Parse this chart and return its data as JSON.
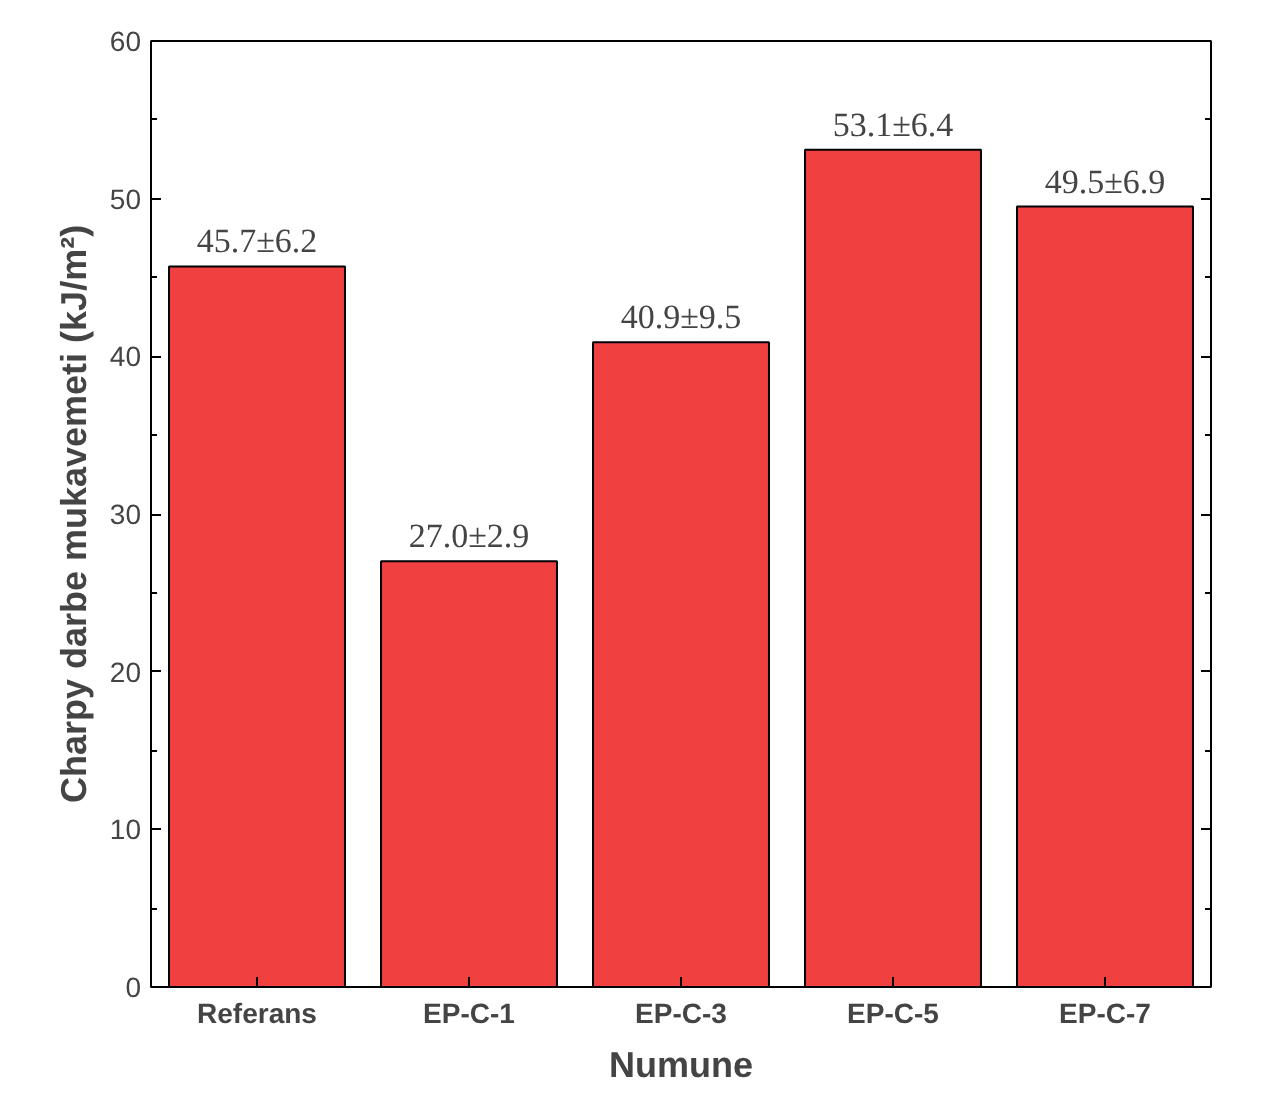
{
  "chart_data": {
    "type": "bar",
    "xlabel": "Numune",
    "ylabel": "Charpy darbe mukavemeti (kJ/m²)",
    "categories": [
      "Referans",
      "EP-C-1",
      "EP-C-3",
      "EP-C-5",
      "EP-C-7"
    ],
    "values": [
      45.7,
      27.0,
      40.9,
      53.1,
      49.5
    ],
    "value_labels": [
      "45.7±6.2",
      "27.0±2.9",
      "40.9±9.5",
      "53.1±6.4",
      "49.5±6.9"
    ],
    "color": "#f04040",
    "ylim": [
      0,
      60
    ],
    "yticks": [
      0,
      10,
      20,
      30,
      40,
      50,
      60
    ],
    "grid": false
  }
}
